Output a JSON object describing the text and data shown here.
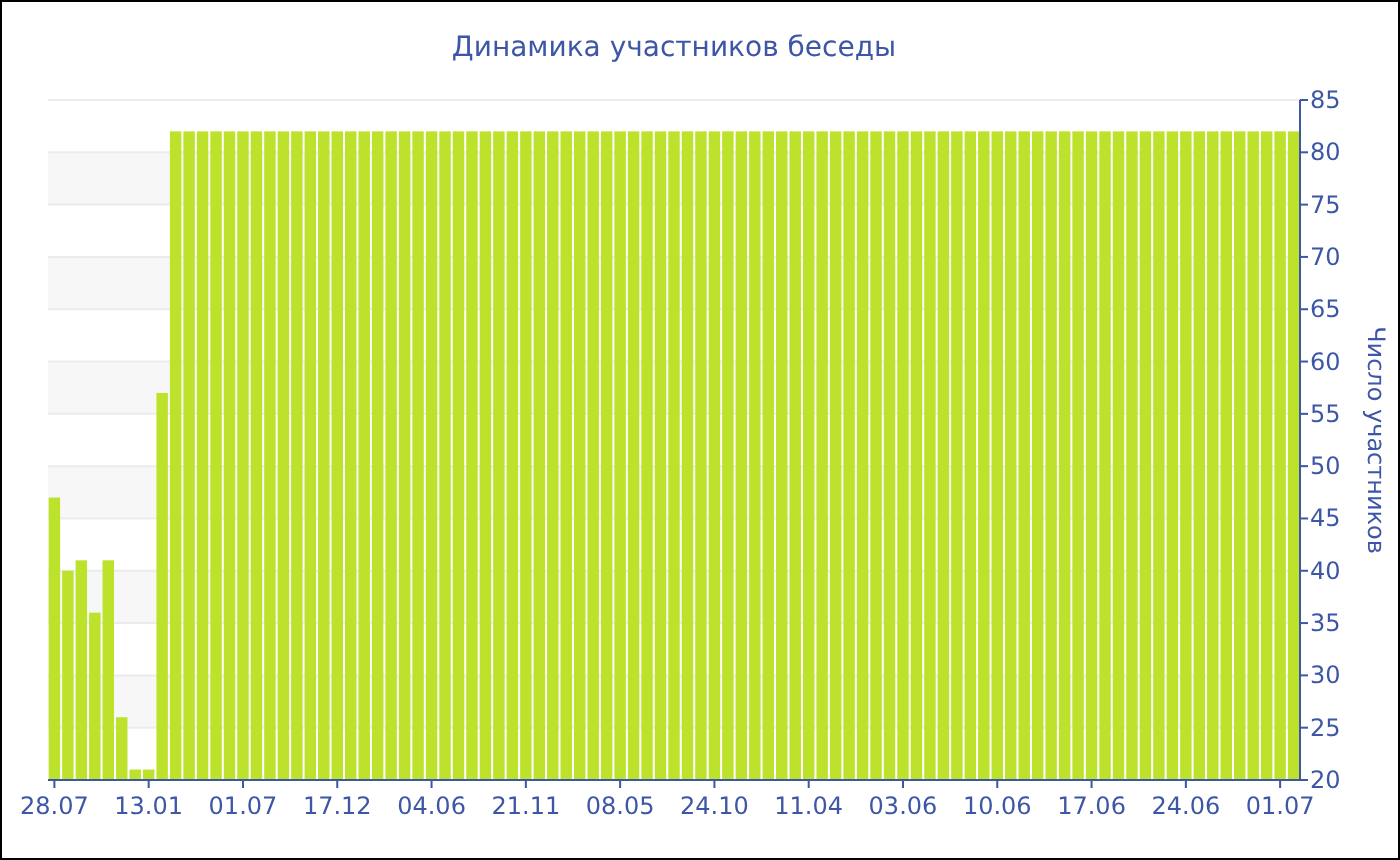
{
  "chart_data": {
    "type": "bar",
    "title": "Динамика участников беседы",
    "ylabel": "Число участников",
    "categories": [
      "28.07",
      null,
      null,
      null,
      null,
      null,
      null,
      "13.01",
      null,
      null,
      null,
      null,
      null,
      null,
      "01.07",
      null,
      null,
      null,
      null,
      null,
      null,
      "17.12",
      null,
      null,
      null,
      null,
      null,
      null,
      "04.06",
      null,
      null,
      null,
      null,
      null,
      null,
      "21.11",
      null,
      null,
      null,
      null,
      null,
      null,
      "08.05",
      null,
      null,
      null,
      null,
      null,
      null,
      "24.10",
      null,
      null,
      null,
      null,
      null,
      null,
      "11.04",
      null,
      null,
      null,
      null,
      null,
      null,
      "03.06",
      null,
      null,
      null,
      null,
      null,
      null,
      "10.06",
      null,
      null,
      null,
      null,
      null,
      null,
      "17.06",
      null,
      null,
      null,
      null,
      null,
      null,
      "24.06",
      null,
      null,
      null,
      null,
      null,
      null,
      "01.07",
      null
    ],
    "values": [
      47,
      40,
      41,
      36,
      41,
      26,
      21,
      21,
      57,
      82,
      82,
      82,
      82,
      82,
      82,
      82,
      82,
      82,
      82,
      82,
      82,
      82,
      82,
      82,
      82,
      82,
      82,
      82,
      82,
      82,
      82,
      82,
      82,
      82,
      82,
      82,
      82,
      82,
      82,
      82,
      82,
      82,
      82,
      82,
      82,
      82,
      82,
      82,
      82,
      82,
      82,
      82,
      82,
      82,
      82,
      82,
      82,
      82,
      82,
      82,
      82,
      82,
      82,
      82,
      82,
      82,
      82,
      82,
      82,
      82,
      82,
      82,
      82,
      82,
      82,
      82,
      82,
      82,
      82,
      82,
      82,
      82,
      82,
      82,
      82,
      82,
      82,
      82,
      82,
      82,
      82,
      82,
      82
    ],
    "color": "#bde22c",
    "ylim": [
      20,
      85
    ],
    "yticks": [
      20,
      25,
      30,
      35,
      40,
      45,
      50,
      55,
      60,
      65,
      70,
      75,
      80,
      85
    ],
    "grid": "y"
  }
}
